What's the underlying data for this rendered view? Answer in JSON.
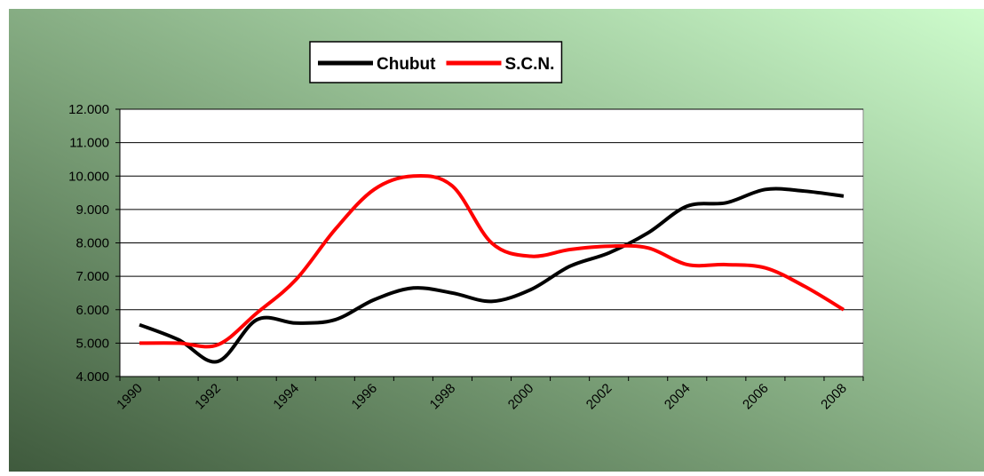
{
  "chart_data": {
    "type": "line",
    "categories": [
      "1990",
      null,
      "1992",
      null,
      "1994",
      null,
      "1996",
      null,
      "1998",
      null,
      "2000",
      null,
      "2002",
      null,
      "2004",
      null,
      "2006",
      null,
      "2008"
    ],
    "series": [
      {
        "name": "Chubut",
        "color": "#000000",
        "values": [
          5550,
          5100,
          4450,
          5700,
          5600,
          5700,
          6300,
          6650,
          6500,
          6250,
          6600,
          7300,
          7700,
          8300,
          9100,
          9200,
          9600,
          9550,
          9400
        ]
      },
      {
        "name": "S.C.N.",
        "color": "#ff0000",
        "values": [
          5000,
          5000,
          4950,
          5900,
          6900,
          8400,
          9600,
          10000,
          9700,
          8000,
          7600,
          7800,
          7900,
          7850,
          7350,
          7350,
          7250,
          6700,
          6000
        ]
      }
    ],
    "ylim": [
      4000,
      12000
    ],
    "yticks": [
      {
        "value": 4000,
        "label": "4.000"
      },
      {
        "value": 5000,
        "label": "5.000"
      },
      {
        "value": 6000,
        "label": "6.000"
      },
      {
        "value": 7000,
        "label": "7.000"
      },
      {
        "value": 8000,
        "label": "8.000"
      },
      {
        "value": 9000,
        "label": "9.000"
      },
      {
        "value": 10000,
        "label": "10.000"
      },
      {
        "value": 11000,
        "label": "11.000"
      },
      {
        "value": 12000,
        "label": "12.000"
      }
    ],
    "grid": true,
    "legend": "top"
  }
}
